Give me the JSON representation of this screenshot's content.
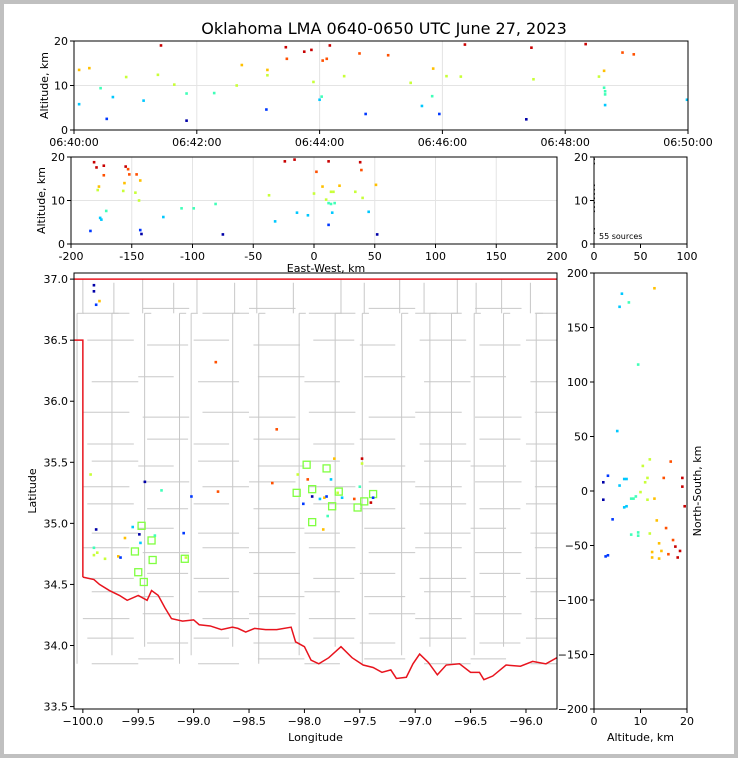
{
  "title": "Oklahoma LMA 0640-0650 UTC June 27, 2023",
  "colors": {
    "county": "#c8c8c8",
    "state_border": "#e8141e",
    "station": "#80ff40",
    "grid": "#e4e4e4",
    "colormap": [
      "#0000a8",
      "#0038ff",
      "#00c8ff",
      "#40ffb8",
      "#c8ff38",
      "#ffc000",
      "#ff5000",
      "#c80000"
    ]
  },
  "chart_data": [
    {
      "id": "time_alt",
      "type": "scatter",
      "xlabel": "",
      "ylabel": "Altitude, km",
      "xlim": [
        "06:40:00",
        "06:50:00"
      ],
      "ylim": [
        0,
        20
      ],
      "xticks": [
        "06:40:00",
        "06:42:00",
        "06:44:00",
        "06:46:00",
        "06:48:00",
        "06:50:00"
      ],
      "yticks": [
        0,
        10,
        20
      ],
      "grid": true,
      "points": [
        {
          "t": 5,
          "z": 13.5
        },
        {
          "t": 5,
          "z": 5.8
        },
        {
          "t": 15,
          "z": 13.9
        },
        {
          "t": 26,
          "z": 9.4
        },
        {
          "t": 32,
          "z": 2.5
        },
        {
          "t": 38,
          "z": 7.4
        },
        {
          "t": 51,
          "z": 11.9
        },
        {
          "t": 68,
          "z": 6.6
        },
        {
          "t": 82,
          "z": 12.4
        },
        {
          "t": 85,
          "z": 19.0
        },
        {
          "t": 98,
          "z": 10.2
        },
        {
          "t": 110,
          "z": 8.2
        },
        {
          "t": 110,
          "z": 2.1
        },
        {
          "t": 137,
          "z": 8.3
        },
        {
          "t": 159,
          "z": 10.0
        },
        {
          "t": 164,
          "z": 14.6
        },
        {
          "t": 188,
          "z": 4.6
        },
        {
          "t": 189,
          "z": 13.5
        },
        {
          "t": 189,
          "z": 12.3
        },
        {
          "t": 207,
          "z": 18.6
        },
        {
          "t": 208,
          "z": 16.0
        },
        {
          "t": 225,
          "z": 17.6
        },
        {
          "t": 232,
          "z": 18.0
        },
        {
          "t": 234,
          "z": 10.8
        },
        {
          "t": 240,
          "z": 6.8
        },
        {
          "t": 242,
          "z": 7.5
        },
        {
          "t": 243,
          "z": 15.6
        },
        {
          "t": 247,
          "z": 16.0
        },
        {
          "t": 250,
          "z": 19.0
        },
        {
          "t": 264,
          "z": 12.1
        },
        {
          "t": 279,
          "z": 17.2
        },
        {
          "t": 285,
          "z": 3.6
        },
        {
          "t": 307,
          "z": 16.8
        },
        {
          "t": 329,
          "z": 10.6
        },
        {
          "t": 340,
          "z": 5.4
        },
        {
          "t": 350,
          "z": 7.6
        },
        {
          "t": 351,
          "z": 13.8
        },
        {
          "t": 357,
          "z": 3.6
        },
        {
          "t": 364,
          "z": 12.1
        },
        {
          "t": 378,
          "z": 12.0
        },
        {
          "t": 382,
          "z": 19.2
        },
        {
          "t": 442,
          "z": 2.4
        },
        {
          "t": 447,
          "z": 18.5
        },
        {
          "t": 449,
          "z": 11.4
        },
        {
          "t": 500,
          "z": 19.3
        },
        {
          "t": 513,
          "z": 12.0
        },
        {
          "t": 518,
          "z": 13.3
        },
        {
          "t": 518,
          "z": 9.5
        },
        {
          "t": 519,
          "z": 8.7
        },
        {
          "t": 519,
          "z": 8.0
        },
        {
          "t": 519,
          "z": 5.6
        },
        {
          "t": 536,
          "z": 17.4
        },
        {
          "t": 547,
          "z": 17.0
        },
        {
          "t": 599,
          "z": 6.8
        }
      ]
    },
    {
      "id": "ew_alt",
      "type": "scatter",
      "xlabel": "East-West, km",
      "ylabel": "Altitude, km",
      "xlim": [
        -200,
        200
      ],
      "ylim": [
        0,
        20
      ],
      "xticks": [
        -200,
        -150,
        -100,
        -50,
        0,
        50,
        100,
        150,
        200
      ],
      "yticks": [
        0,
        10,
        20
      ],
      "grid": true,
      "points": [
        {
          "x": -184,
          "z": 3.0
        },
        {
          "x": -181,
          "z": 18.8
        },
        {
          "x": -179,
          "z": 17.6
        },
        {
          "x": -178,
          "z": 12.4
        },
        {
          "x": -177,
          "z": 13.2
        },
        {
          "x": -176,
          "z": 6.0
        },
        {
          "x": -175,
          "z": 5.6
        },
        {
          "x": -173,
          "z": 18.0
        },
        {
          "x": -173,
          "z": 15.8
        },
        {
          "x": -171,
          "z": 7.6
        },
        {
          "x": -157,
          "z": 12.2
        },
        {
          "x": -156,
          "z": 14.0
        },
        {
          "x": -155,
          "z": 17.8
        },
        {
          "x": -153,
          "z": 17.2
        },
        {
          "x": -152,
          "z": 16.0
        },
        {
          "x": -147,
          "z": 11.8
        },
        {
          "x": -146,
          "z": 16.0
        },
        {
          "x": -144,
          "z": 10.0
        },
        {
          "x": -143,
          "z": 14.6
        },
        {
          "x": -143,
          "z": 3.2
        },
        {
          "x": -142,
          "z": 2.3
        },
        {
          "x": -124,
          "z": 6.2
        },
        {
          "x": -109,
          "z": 8.2
        },
        {
          "x": -99,
          "z": 8.2
        },
        {
          "x": -81,
          "z": 9.2
        },
        {
          "x": -75,
          "z": 2.2
        },
        {
          "x": -37,
          "z": 11.2
        },
        {
          "x": -32,
          "z": 5.2
        },
        {
          "x": -24,
          "z": 19.0
        },
        {
          "x": -16,
          "z": 19.4
        },
        {
          "x": -14,
          "z": 7.2
        },
        {
          "x": -5,
          "z": 6.6
        },
        {
          "x": 0,
          "z": 11.6
        },
        {
          "x": 2,
          "z": 16.6
        },
        {
          "x": 7,
          "z": 13.2
        },
        {
          "x": 10,
          "z": 10.2
        },
        {
          "x": 12,
          "z": 19.0
        },
        {
          "x": 12,
          "z": 9.4
        },
        {
          "x": 12,
          "z": 4.4
        },
        {
          "x": 14,
          "z": 12.0
        },
        {
          "x": 14,
          "z": 9.2
        },
        {
          "x": 15,
          "z": 7.2
        },
        {
          "x": 16,
          "z": 12.0
        },
        {
          "x": 17,
          "z": 9.4
        },
        {
          "x": 21,
          "z": 13.4
        },
        {
          "x": 34,
          "z": 12.0
        },
        {
          "x": 38,
          "z": 18.8
        },
        {
          "x": 39,
          "z": 17.0
        },
        {
          "x": 40,
          "z": 10.6
        },
        {
          "x": 45,
          "z": 7.4
        },
        {
          "x": 51,
          "z": 13.6
        },
        {
          "x": 52,
          "z": 2.2
        }
      ]
    },
    {
      "id": "histogram",
      "type": "bar",
      "xlabel": "",
      "ylabel": "",
      "xlim": [
        0,
        100
      ],
      "ylim": [
        0,
        20
      ],
      "xticks": [
        0,
        50,
        100
      ],
      "yticks": [
        0,
        10,
        20
      ],
      "annotation": "55 sources",
      "bins": [
        {
          "z": 19.5,
          "count": 1
        },
        {
          "z": 18.5,
          "count": 1
        },
        {
          "z": 13.5,
          "count": 1
        },
        {
          "z": 12.5,
          "count": 1
        },
        {
          "z": 11.5,
          "count": 1
        },
        {
          "z": 10.5,
          "count": 1
        },
        {
          "z": 9.5,
          "count": 1
        },
        {
          "z": 8.5,
          "count": 1
        },
        {
          "z": 7.5,
          "count": 1
        },
        {
          "z": 3.5,
          "count": 1
        },
        {
          "z": 2.5,
          "count": 1
        }
      ]
    },
    {
      "id": "plan_map",
      "type": "scatter",
      "xlabel": "Longitude",
      "ylabel": "Latitude",
      "xlim": [
        -100.08,
        -95.72
      ],
      "ylim": [
        33.48,
        37.05
      ],
      "xticks": [
        -100.0,
        -99.5,
        -99.0,
        -98.5,
        -98.0,
        -97.5,
        -97.0,
        -96.5,
        -96.0
      ],
      "yticks": [
        33.5,
        34.0,
        34.5,
        35.0,
        35.5,
        36.0,
        36.5,
        37.0
      ],
      "grid": false,
      "points": [
        {
          "lon": -99.9,
          "lat": 36.95,
          "z": 2.0
        },
        {
          "lon": -99.9,
          "lat": 36.9,
          "z": 1.0
        },
        {
          "lon": -99.85,
          "lat": 36.82,
          "z": 14.0
        },
        {
          "lon": -99.88,
          "lat": 36.79,
          "z": 3.0
        },
        {
          "lon": -98.8,
          "lat": 36.32,
          "z": 16.0
        },
        {
          "lon": -98.25,
          "lat": 35.77,
          "z": 16.0
        },
        {
          "lon": -99.93,
          "lat": 35.4,
          "z": 11.0
        },
        {
          "lon": -99.88,
          "lat": 34.95,
          "z": 2.0
        },
        {
          "lon": -99.9,
          "lat": 34.8,
          "z": 9.0
        },
        {
          "lon": -99.87,
          "lat": 34.76,
          "z": 10.0
        },
        {
          "lon": -99.9,
          "lat": 34.74,
          "z": 12.0
        },
        {
          "lon": -99.8,
          "lat": 34.71,
          "z": 11.0
        },
        {
          "lon": -99.68,
          "lat": 34.73,
          "z": 14.0
        },
        {
          "lon": -99.66,
          "lat": 34.72,
          "z": 4.0
        },
        {
          "lon": -99.62,
          "lat": 34.88,
          "z": 13.0
        },
        {
          "lon": -99.55,
          "lat": 34.97,
          "z": 7.0
        },
        {
          "lon": -99.49,
          "lat": 34.91,
          "z": 2.0
        },
        {
          "lon": -99.48,
          "lat": 34.84,
          "z": 7.0
        },
        {
          "lon": -99.35,
          "lat": 34.9,
          "z": 9.0
        },
        {
          "lon": -99.44,
          "lat": 35.34,
          "z": 1.0
        },
        {
          "lon": -99.29,
          "lat": 35.27,
          "z": 9.0
        },
        {
          "lon": -99.02,
          "lat": 35.22,
          "z": 3.0
        },
        {
          "lon": -99.09,
          "lat": 34.92,
          "z": 4.0
        },
        {
          "lon": -99.07,
          "lat": 34.72,
          "z": 11.0
        },
        {
          "lon": -98.78,
          "lat": 35.26,
          "z": 15.0
        },
        {
          "lon": -98.29,
          "lat": 35.33,
          "z": 15.0
        },
        {
          "lon": -98.06,
          "lat": 35.4,
          "z": 10.0
        },
        {
          "lon": -98.01,
          "lat": 35.16,
          "z": 3.0
        },
        {
          "lon": -97.97,
          "lat": 35.36,
          "z": 15.0
        },
        {
          "lon": -97.93,
          "lat": 35.22,
          "z": 2.0
        },
        {
          "lon": -97.86,
          "lat": 35.2,
          "z": 7.0
        },
        {
          "lon": -97.82,
          "lat": 35.21,
          "z": 14.0
        },
        {
          "lon": -97.8,
          "lat": 35.22,
          "z": 3.0
        },
        {
          "lon": -97.83,
          "lat": 34.95,
          "z": 13.0
        },
        {
          "lon": -97.79,
          "lat": 35.06,
          "z": 9.0
        },
        {
          "lon": -97.76,
          "lat": 35.36,
          "z": 6.0
        },
        {
          "lon": -97.73,
          "lat": 35.53,
          "z": 13.0
        },
        {
          "lon": -97.7,
          "lat": 35.25,
          "z": 12.0
        },
        {
          "lon": -97.66,
          "lat": 35.21,
          "z": 5.0
        },
        {
          "lon": -97.55,
          "lat": 35.2,
          "z": 16.0
        },
        {
          "lon": -97.48,
          "lat": 35.53,
          "z": 18.0
        },
        {
          "lon": -97.48,
          "lat": 35.49,
          "z": 11.0
        },
        {
          "lon": -97.5,
          "lat": 35.3,
          "z": 8.0
        },
        {
          "lon": -97.4,
          "lat": 35.17,
          "z": 19.0
        },
        {
          "lon": -97.38,
          "lat": 35.21,
          "z": 3.0
        }
      ],
      "stations": [
        {
          "lon": -97.98,
          "lat": 35.48
        },
        {
          "lon": -97.8,
          "lat": 35.45
        },
        {
          "lon": -97.93,
          "lat": 35.28
        },
        {
          "lon": -98.07,
          "lat": 35.25
        },
        {
          "lon": -97.69,
          "lat": 35.26
        },
        {
          "lon": -97.93,
          "lat": 35.01
        },
        {
          "lon": -97.75,
          "lat": 35.14
        },
        {
          "lon": -97.52,
          "lat": 35.13
        },
        {
          "lon": -97.46,
          "lat": 35.18
        },
        {
          "lon": -97.38,
          "lat": 35.24
        },
        {
          "lon": -99.47,
          "lat": 34.98
        },
        {
          "lon": -99.38,
          "lat": 34.86
        },
        {
          "lon": -99.53,
          "lat": 34.77
        },
        {
          "lon": -99.37,
          "lat": 34.7
        },
        {
          "lon": -99.08,
          "lat": 34.71
        },
        {
          "lon": -99.5,
          "lat": 34.6
        },
        {
          "lon": -99.45,
          "lat": 34.52
        }
      ]
    },
    {
      "id": "alt_ns",
      "type": "scatter",
      "xlabel": "Altitude, km",
      "ylabel": "North-South, km",
      "xlim": [
        0,
        20
      ],
      "ylim": [
        -200,
        200
      ],
      "xticks": [
        0,
        10,
        20
      ],
      "yticks": [
        -200,
        -150,
        -100,
        -50,
        0,
        50,
        100,
        150,
        200
      ],
      "grid": false,
      "points": [
        {
          "z": 5.5,
          "y": 169
        },
        {
          "z": 6.0,
          "y": 181
        },
        {
          "z": 7.5,
          "y": 173
        },
        {
          "z": 13.0,
          "y": 186
        },
        {
          "z": 9.5,
          "y": 116
        },
        {
          "z": 5.0,
          "y": 55
        },
        {
          "z": 2.0,
          "y": -8
        },
        {
          "z": 2.5,
          "y": -60
        },
        {
          "z": 3.0,
          "y": -59
        },
        {
          "z": 3.0,
          "y": 14
        },
        {
          "z": 4.0,
          "y": -26
        },
        {
          "z": 5.5,
          "y": 5
        },
        {
          "z": 6.5,
          "y": 11
        },
        {
          "z": 7.0,
          "y": -14
        },
        {
          "z": 8.0,
          "y": -40
        },
        {
          "z": 8.5,
          "y": -7
        },
        {
          "z": 9.0,
          "y": -5
        },
        {
          "z": 9.5,
          "y": -38
        },
        {
          "z": 10.0,
          "y": -1
        },
        {
          "z": 10.5,
          "y": 23
        },
        {
          "z": 11.0,
          "y": 8
        },
        {
          "z": 11.5,
          "y": -8
        },
        {
          "z": 12.0,
          "y": 29
        },
        {
          "z": 12.0,
          "y": -39
        },
        {
          "z": 12.5,
          "y": -56
        },
        {
          "z": 13.0,
          "y": -7
        },
        {
          "z": 13.5,
          "y": -27
        },
        {
          "z": 14.0,
          "y": -48
        },
        {
          "z": 14.5,
          "y": -55
        },
        {
          "z": 15.0,
          "y": 12
        },
        {
          "z": 15.5,
          "y": -34
        },
        {
          "z": 16.0,
          "y": -58
        },
        {
          "z": 16.5,
          "y": 27
        },
        {
          "z": 17.0,
          "y": -45
        },
        {
          "z": 17.5,
          "y": -51
        },
        {
          "z": 18.0,
          "y": -61
        },
        {
          "z": 18.5,
          "y": -55
        },
        {
          "z": 19.0,
          "y": 12
        },
        {
          "z": 19.0,
          "y": 4
        },
        {
          "z": 19.5,
          "y": -14
        },
        {
          "z": 12.5,
          "y": -61
        },
        {
          "z": 14.0,
          "y": -62
        },
        {
          "z": 8.0,
          "y": -7
        },
        {
          "z": 2.0,
          "y": 8
        },
        {
          "z": 9.5,
          "y": -41
        },
        {
          "z": 11.5,
          "y": 12
        },
        {
          "z": 6.5,
          "y": -15
        },
        {
          "z": 7.0,
          "y": 11
        }
      ]
    }
  ]
}
